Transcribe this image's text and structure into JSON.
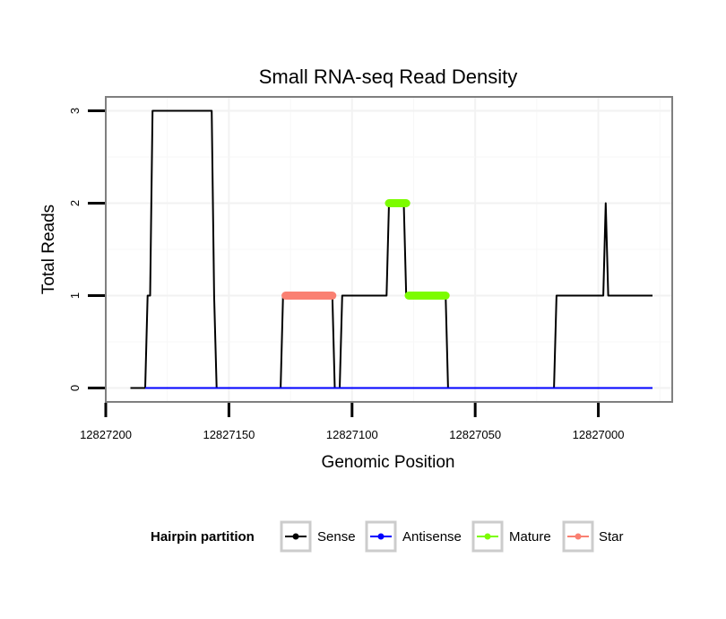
{
  "chart_data": {
    "type": "line",
    "title": "Small RNA-seq Read Density",
    "xlabel": "Genomic Position",
    "ylabel": "Total Reads",
    "xlim": [
      12827200,
      12826970
    ],
    "x_reversed": true,
    "ylim": [
      -0.15,
      3.15
    ],
    "xticks": [
      12827200,
      12827150,
      12827100,
      12827050,
      12827000
    ],
    "xtick_labels": [
      "12827200",
      "12827150",
      "12827100",
      "12827050",
      "12827000"
    ],
    "yticks": [
      0,
      1,
      2,
      3
    ],
    "ytick_labels": [
      "0",
      "1",
      "2",
      "3"
    ],
    "grid": true,
    "legend": {
      "title": "Hairpin partition",
      "position": "bottom",
      "entries": [
        {
          "label": "Sense",
          "color": "#000000"
        },
        {
          "label": "Antisense",
          "color": "#0000ff"
        },
        {
          "label": "Mature",
          "color": "#7cfc00"
        },
        {
          "label": "Star",
          "color": "#fa8072"
        }
      ]
    },
    "series": [
      {
        "name": "Sense",
        "color": "#000000",
        "width": 2,
        "points": [
          [
            12827190,
            0
          ],
          [
            12827184,
            0
          ],
          [
            12827183,
            1
          ],
          [
            12827182,
            1
          ],
          [
            12827181,
            3
          ],
          [
            12827157,
            3
          ],
          [
            12827156,
            1
          ],
          [
            12827155,
            0
          ],
          [
            12827129,
            0
          ],
          [
            12827128,
            1
          ],
          [
            12827108,
            1
          ],
          [
            12827107,
            0
          ],
          [
            12827105,
            0
          ],
          [
            12827104,
            1
          ],
          [
            12827086,
            1
          ],
          [
            12827085,
            2
          ],
          [
            12827079,
            2
          ],
          [
            12827078,
            1
          ],
          [
            12827062,
            1
          ],
          [
            12827061,
            0
          ],
          [
            12827018,
            0
          ],
          [
            12827017,
            1
          ],
          [
            12826998,
            1
          ],
          [
            12826997,
            2
          ],
          [
            12826996,
            1
          ],
          [
            12826978,
            1
          ]
        ]
      },
      {
        "name": "Antisense",
        "color": "#0000ff",
        "width": 2,
        "points": [
          [
            12827184,
            0
          ],
          [
            12826978,
            0
          ]
        ]
      },
      {
        "name": "Star",
        "color": "#fa8072",
        "width": 9,
        "points": [
          [
            12827127,
            1
          ],
          [
            12827108,
            1
          ]
        ]
      },
      {
        "name": "Mature",
        "color": "#7cfc00",
        "width": 9,
        "segments": [
          [
            [
              12827085,
              2
            ],
            [
              12827078,
              2
            ]
          ],
          [
            [
              12827077,
              1
            ],
            [
              12827062,
              1
            ]
          ]
        ]
      }
    ]
  }
}
